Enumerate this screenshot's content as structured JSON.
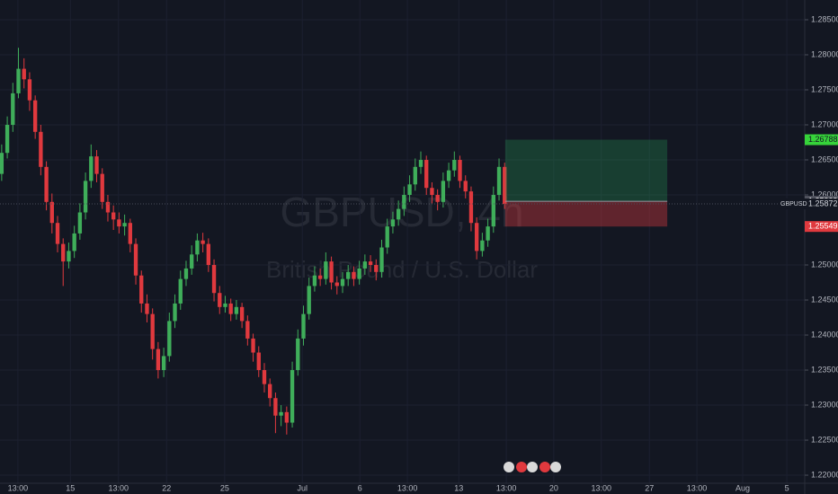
{
  "chart_data": {
    "type": "candlestick",
    "title": "GBPUSD, 4h",
    "subtitle": "British Pound / U.S. Dollar",
    "symbol": "GBPUSD",
    "up_color": "#3fae5a",
    "down_color": "#e0393e",
    "open": [
      1.263,
      1.266,
      1.27,
      1.2745,
      1.278,
      1.2765,
      1.2735,
      1.269,
      1.264,
      1.259,
      1.256,
      1.253,
      1.2505,
      1.252,
      1.2545,
      1.2575,
      1.262,
      1.2655,
      1.263,
      1.259,
      1.2575,
      1.2565,
      1.2555,
      1.256,
      1.253,
      1.2485,
      1.2445,
      1.243,
      1.238,
      1.235,
      1.237,
      1.242,
      1.2445,
      1.248,
      1.2495,
      1.2515,
      1.2535,
      1.253,
      1.25,
      1.246,
      1.244,
      1.2445,
      1.243,
      1.244,
      1.242,
      1.2395,
      1.2375,
      1.235,
      1.233,
      1.231,
      1.2285,
      1.229,
      1.2275,
      1.235,
      1.2395,
      1.243,
      1.247,
      1.2485,
      1.248,
      1.2505,
      1.2475,
      1.247,
      1.248,
      1.249,
      1.248,
      1.2495,
      1.2505,
      1.25,
      1.249,
      1.2525,
      1.2555,
      1.2565,
      1.258,
      1.26,
      1.2615,
      1.264,
      1.265,
      1.261,
      1.26,
      1.259,
      1.262,
      1.2635,
      1.265,
      1.262,
      1.2605,
      1.256,
      1.252,
      1.2535,
      1.2555,
      1.26,
      1.264
    ],
    "high": [
      1.2672,
      1.2712,
      1.276,
      1.281,
      1.2795,
      1.2775,
      1.2742,
      1.27,
      1.2648,
      1.2602,
      1.257,
      1.2538,
      1.2532,
      1.2556,
      1.2588,
      1.2632,
      1.2672,
      1.2664,
      1.2638,
      1.26,
      1.2585,
      1.2575,
      1.2572,
      1.2566,
      1.2538,
      1.2492,
      1.2458,
      1.2438,
      1.239,
      1.2382,
      1.2432,
      1.2458,
      1.2492,
      1.2506,
      1.2528,
      1.2545,
      1.2546,
      1.2538,
      1.2508,
      1.247,
      1.2456,
      1.2452,
      1.245,
      1.2446,
      1.2428,
      1.2402,
      1.2384,
      1.236,
      1.2338,
      1.2318,
      1.23,
      1.2298,
      1.2362,
      1.2408,
      1.2442,
      1.2482,
      1.2498,
      1.2495,
      1.2518,
      1.2512,
      1.2484,
      1.249,
      1.25,
      1.2498,
      1.2506,
      1.2515,
      1.2514,
      1.2508,
      1.2536,
      1.2566,
      1.2576,
      1.2592,
      1.2612,
      1.2628,
      1.2652,
      1.2662,
      1.2656,
      1.2618,
      1.2608,
      1.2632,
      1.2646,
      1.2662,
      1.2656,
      1.2628,
      1.2612,
      1.2568,
      1.2546,
      1.2566,
      1.2612,
      1.2652,
      1.2646
    ],
    "low": [
      1.262,
      1.2652,
      1.269,
      1.2738,
      1.2752,
      1.272,
      1.268,
      1.2628,
      1.2578,
      1.2545,
      1.2518,
      1.247,
      1.2495,
      1.251,
      1.2536,
      1.2565,
      1.261,
      1.2618,
      1.258,
      1.2562,
      1.255,
      1.2545,
      1.2542,
      1.2518,
      1.2472,
      1.2432,
      1.2418,
      1.2365,
      1.2338,
      1.234,
      1.2362,
      1.241,
      1.2436,
      1.247,
      1.2486,
      1.2505,
      1.2518,
      1.249,
      1.2448,
      1.243,
      1.2432,
      1.242,
      1.2422,
      1.241,
      1.2385,
      1.2362,
      1.234,
      1.2318,
      1.2298,
      1.226,
      1.227,
      1.2258,
      1.2268,
      1.2342,
      1.2385,
      1.2422,
      1.2462,
      1.247,
      1.2472,
      1.2465,
      1.2458,
      1.246,
      1.247,
      1.247,
      1.2472,
      1.2486,
      1.249,
      1.2478,
      1.2482,
      1.2516,
      1.2545,
      1.2556,
      1.257,
      1.259,
      1.2606,
      1.263,
      1.26,
      1.2588,
      1.2578,
      1.2582,
      1.261,
      1.2626,
      1.261,
      1.2595,
      1.2548,
      1.2508,
      1.2512,
      1.2526,
      1.2546,
      1.2592,
      1.258
    ],
    "close": [
      1.266,
      1.27,
      1.2745,
      1.278,
      1.2765,
      1.2735,
      1.269,
      1.264,
      1.259,
      1.256,
      1.253,
      1.2505,
      1.252,
      1.2545,
      1.2575,
      1.262,
      1.2655,
      1.263,
      1.259,
      1.2575,
      1.2565,
      1.2555,
      1.256,
      1.253,
      1.2485,
      1.2445,
      1.243,
      1.238,
      1.235,
      1.237,
      1.242,
      1.2445,
      1.248,
      1.2495,
      1.2515,
      1.2535,
      1.253,
      1.25,
      1.246,
      1.244,
      1.2445,
      1.243,
      1.244,
      1.242,
      1.2395,
      1.2375,
      1.235,
      1.233,
      1.231,
      1.2285,
      1.229,
      1.2275,
      1.235,
      1.2395,
      1.243,
      1.247,
      1.2485,
      1.248,
      1.2505,
      1.2475,
      1.247,
      1.248,
      1.249,
      1.248,
      1.2495,
      1.2505,
      1.25,
      1.249,
      1.2525,
      1.2555,
      1.2565,
      1.258,
      1.26,
      1.2615,
      1.264,
      1.265,
      1.261,
      1.26,
      1.259,
      1.262,
      1.2635,
      1.265,
      1.262,
      1.2605,
      1.256,
      1.252,
      1.2535,
      1.2555,
      1.26,
      1.264,
      1.2587
    ],
    "ylim": [
      1.21885,
      1.28782
    ],
    "yticks": [
      {
        "value": 1.22,
        "label": "1.22000"
      },
      {
        "value": 1.225,
        "label": "1.22500"
      },
      {
        "value": 1.23,
        "label": "1.23000"
      },
      {
        "value": 1.235,
        "label": "1.23500"
      },
      {
        "value": 1.24,
        "label": "1.24000"
      },
      {
        "value": 1.245,
        "label": "1.24500"
      },
      {
        "value": 1.25,
        "label": "1.25000"
      },
      {
        "value": 1.26,
        "label": "1.26000"
      },
      {
        "value": 1.265,
        "label": "1.26500"
      },
      {
        "value": 1.27,
        "label": "1.27000"
      },
      {
        "value": 1.275,
        "label": "1.27500"
      },
      {
        "value": 1.28,
        "label": "1.28000"
      },
      {
        "value": 1.285,
        "label": "1.28500"
      }
    ],
    "xlim": [
      -0.3,
      143.7
    ],
    "xticks": [
      {
        "value": 2.9,
        "label": "13:00"
      },
      {
        "value": 12.3,
        "label": "15"
      },
      {
        "value": 20.9,
        "label": "13:00"
      },
      {
        "value": 29.5,
        "label": "22"
      },
      {
        "value": 39.9,
        "label": "25"
      },
      {
        "value": 53.8,
        "label": "Jul"
      },
      {
        "value": 64.1,
        "label": "6"
      },
      {
        "value": 72.6,
        "label": "13:00"
      },
      {
        "value": 81.8,
        "label": "13"
      },
      {
        "value": 90.3,
        "label": "13:00"
      },
      {
        "value": 98.8,
        "label": "20"
      },
      {
        "value": 107.3,
        "label": "13:00"
      },
      {
        "value": 115.9,
        "label": "27"
      },
      {
        "value": 124.4,
        "label": "13:00"
      },
      {
        "value": 132.6,
        "label": "Aug"
      },
      {
        "value": 140.5,
        "label": "5"
      }
    ],
    "last_price": 1.25872,
    "position": {
      "target": 1.26788,
      "entry": 1.25909,
      "stop": 1.25549,
      "x_start": 90.1,
      "x_end": 119.1
    }
  }
}
